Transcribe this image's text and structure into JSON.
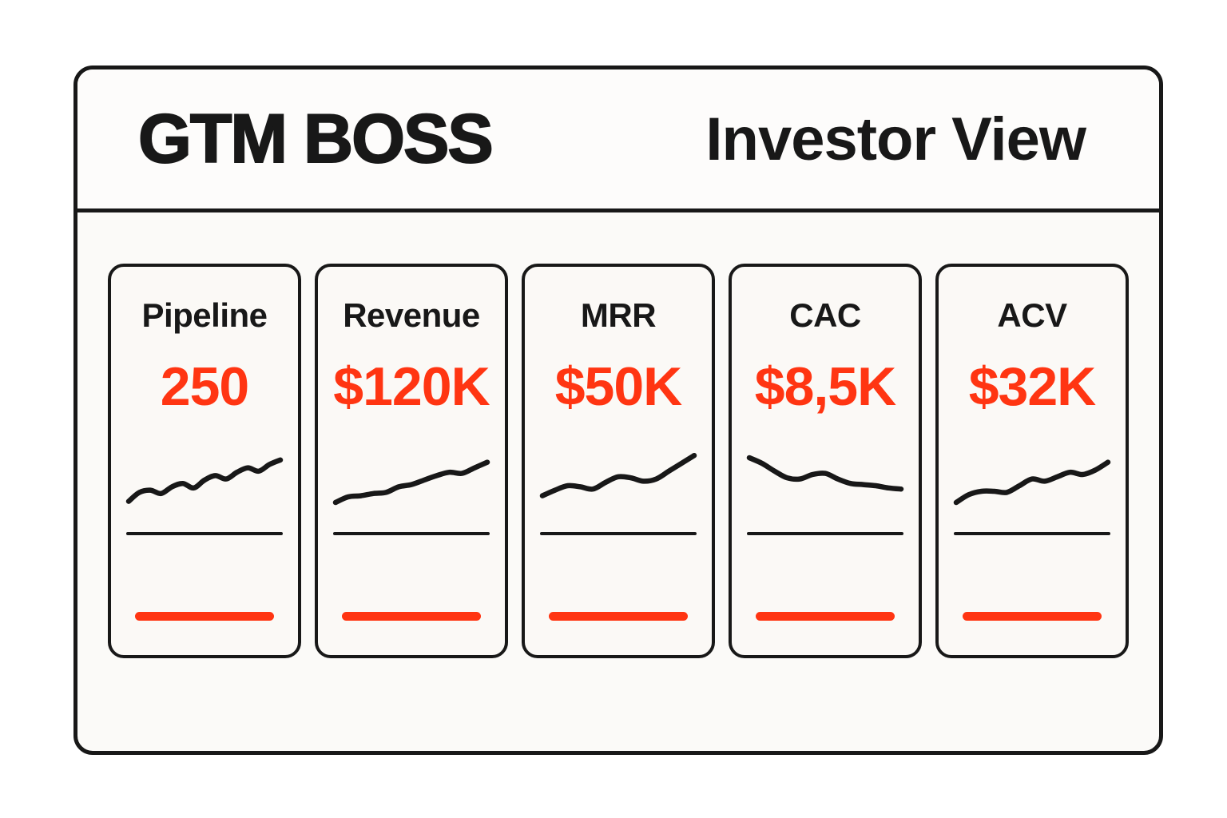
{
  "header": {
    "brand": "GTM BOSS",
    "view": "Investor View"
  },
  "colors": {
    "accent": "#FF3512",
    "ink": "#181818",
    "page_bg": "#FFFFFF",
    "panel_bg": "#FBFAF8",
    "header_bg": "#FDFCFB",
    "card_bg": "#FBF9F6"
  },
  "cards": [
    {
      "id": "pipeline",
      "label": "Pipeline",
      "value": "250",
      "trend": "up",
      "sparkline": [
        12,
        28,
        32,
        26,
        38,
        44,
        36,
        50,
        58,
        52,
        64,
        72,
        66,
        78,
        86
      ]
    },
    {
      "id": "revenue",
      "label": "Revenue",
      "value": "$120K",
      "trend": "up",
      "sparkline": [
        10,
        20,
        22,
        26,
        28,
        38,
        42,
        50,
        58,
        64,
        62,
        72,
        82
      ]
    },
    {
      "id": "mrr",
      "label": "MRR",
      "value": "$50K",
      "trend": "up",
      "sparkline": [
        22,
        32,
        40,
        38,
        34,
        46,
        56,
        54,
        48,
        52,
        66,
        80,
        94
      ]
    },
    {
      "id": "cac",
      "label": "CAC",
      "value": "$8,5K",
      "trend": "down",
      "sparkline": [
        90,
        80,
        66,
        54,
        52,
        60,
        62,
        52,
        44,
        42,
        40,
        36,
        34
      ]
    },
    {
      "id": "acv",
      "label": "ACV",
      "value": "$32K",
      "trend": "up",
      "sparkline": [
        10,
        24,
        30,
        30,
        28,
        40,
        52,
        48,
        56,
        64,
        60,
        68,
        82
      ]
    }
  ]
}
